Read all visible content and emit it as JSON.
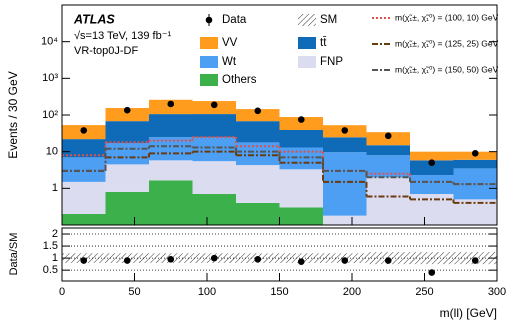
{
  "chart_data": [
    {
      "type": "stacked_histogram",
      "atlas_label": "ATLAS",
      "energy_label": "√s=13 TeV, 139 fb⁻¹",
      "region_label": "VR-top0J-DF",
      "ylabel": "Events / 30 GeV",
      "bins": [
        0,
        30,
        60,
        90,
        120,
        150,
        180,
        210,
        240,
        270,
        300
      ],
      "xlim": [
        0,
        300
      ],
      "ylim": [
        0.1,
        100000
      ],
      "log_y": true,
      "yticks": [
        1,
        10,
        {
          "value": 100,
          "label": "10²"
        },
        {
          "value": 1000,
          "label": "10³"
        },
        {
          "value": 10000,
          "label": "10⁴"
        }
      ],
      "series": [
        {
          "name": "Others",
          "color": "#3cb04a",
          "values": [
            0.2,
            0.8,
            1.65,
            0.7,
            0.4,
            0.3,
            0.1,
            0.1,
            0.1,
            0.1
          ]
        },
        {
          "name": "FNP",
          "color": "#dcdcf0",
          "values": [
            1.3,
            3.7,
            4.15,
            4.8,
            3.9,
            3.0,
            0.08,
            1.9,
            0.6,
            0.4
          ]
        },
        {
          "name": "Wt",
          "color": "#4d9ff4",
          "values": [
            5.5,
            12.5,
            19,
            19.5,
            13.6,
            9.7,
            9.5,
            6,
            1.6,
            3
          ]
        },
        {
          "name": "tt̄",
          "color": "#0f6bb8",
          "values": [
            15,
            51,
            81,
            81,
            50,
            26,
            15,
            7,
            3.5,
            2.5
          ]
        },
        {
          "name": "VV",
          "color": "#ff9c1e",
          "values": [
            31,
            87,
            154,
            134,
            77,
            49,
            28,
            19,
            4.2,
            4
          ]
        }
      ],
      "sm_name": "SM",
      "data": {
        "name": "Data",
        "color": "#000000",
        "values": [
          38,
          135,
          200,
          190,
          130,
          75,
          38,
          27,
          5,
          9
        ]
      },
      "signals": [
        {
          "name": "m(χ̃₁±, χ̃₁⁰) = (100, 10) GeV",
          "color": "#e0504a",
          "dash": "2,2",
          "values": [
            8,
            18,
            20,
            25,
            14,
            10,
            3,
            2.5,
            1.5,
            1.3
          ]
        },
        {
          "name": "m(χ̃₁±, χ̃₁⁰) = (125, 25) GeV",
          "color": "#6b3b10",
          "dash": "6,2,2,2",
          "values": [
            3,
            7,
            9,
            10,
            8,
            5,
            1.5,
            0.6,
            0.5,
            0.4
          ]
        },
        {
          "name": "m(χ̃₁±, χ̃₁⁰) = (150, 50) GeV",
          "color": "#555555",
          "dash": "6,2,2,2",
          "values": [
            3,
            12,
            14,
            13,
            10,
            7,
            3,
            2,
            1.5,
            1.3
          ]
        }
      ]
    },
    {
      "type": "ratio",
      "ylabel": "Data/SM",
      "xlabel": "m(ll) [GeV]",
      "x": [
        15,
        45,
        75,
        105,
        135,
        165,
        195,
        225,
        255,
        285
      ],
      "bins": [
        0,
        30,
        60,
        90,
        120,
        150,
        180,
        210,
        240,
        270,
        300
      ],
      "values": [
        0.9,
        0.9,
        0.95,
        1.0,
        0.95,
        0.85,
        0.9,
        0.9,
        0.4,
        0.9
      ],
      "band_low": [
        0.8,
        0.8,
        0.8,
        0.8,
        0.8,
        0.8,
        0.8,
        0.75,
        0.75,
        0.75
      ],
      "band_high": [
        1.2,
        1.2,
        1.2,
        1.2,
        1.2,
        1.2,
        1.2,
        1.25,
        1.25,
        1.25
      ],
      "xlim": [
        0,
        300
      ],
      "xticks": [
        0,
        50,
        100,
        150,
        200,
        250,
        300
      ],
      "ylim": [
        0.05,
        2.25
      ],
      "yticks": [
        0.5,
        1,
        1.5,
        2
      ]
    }
  ]
}
